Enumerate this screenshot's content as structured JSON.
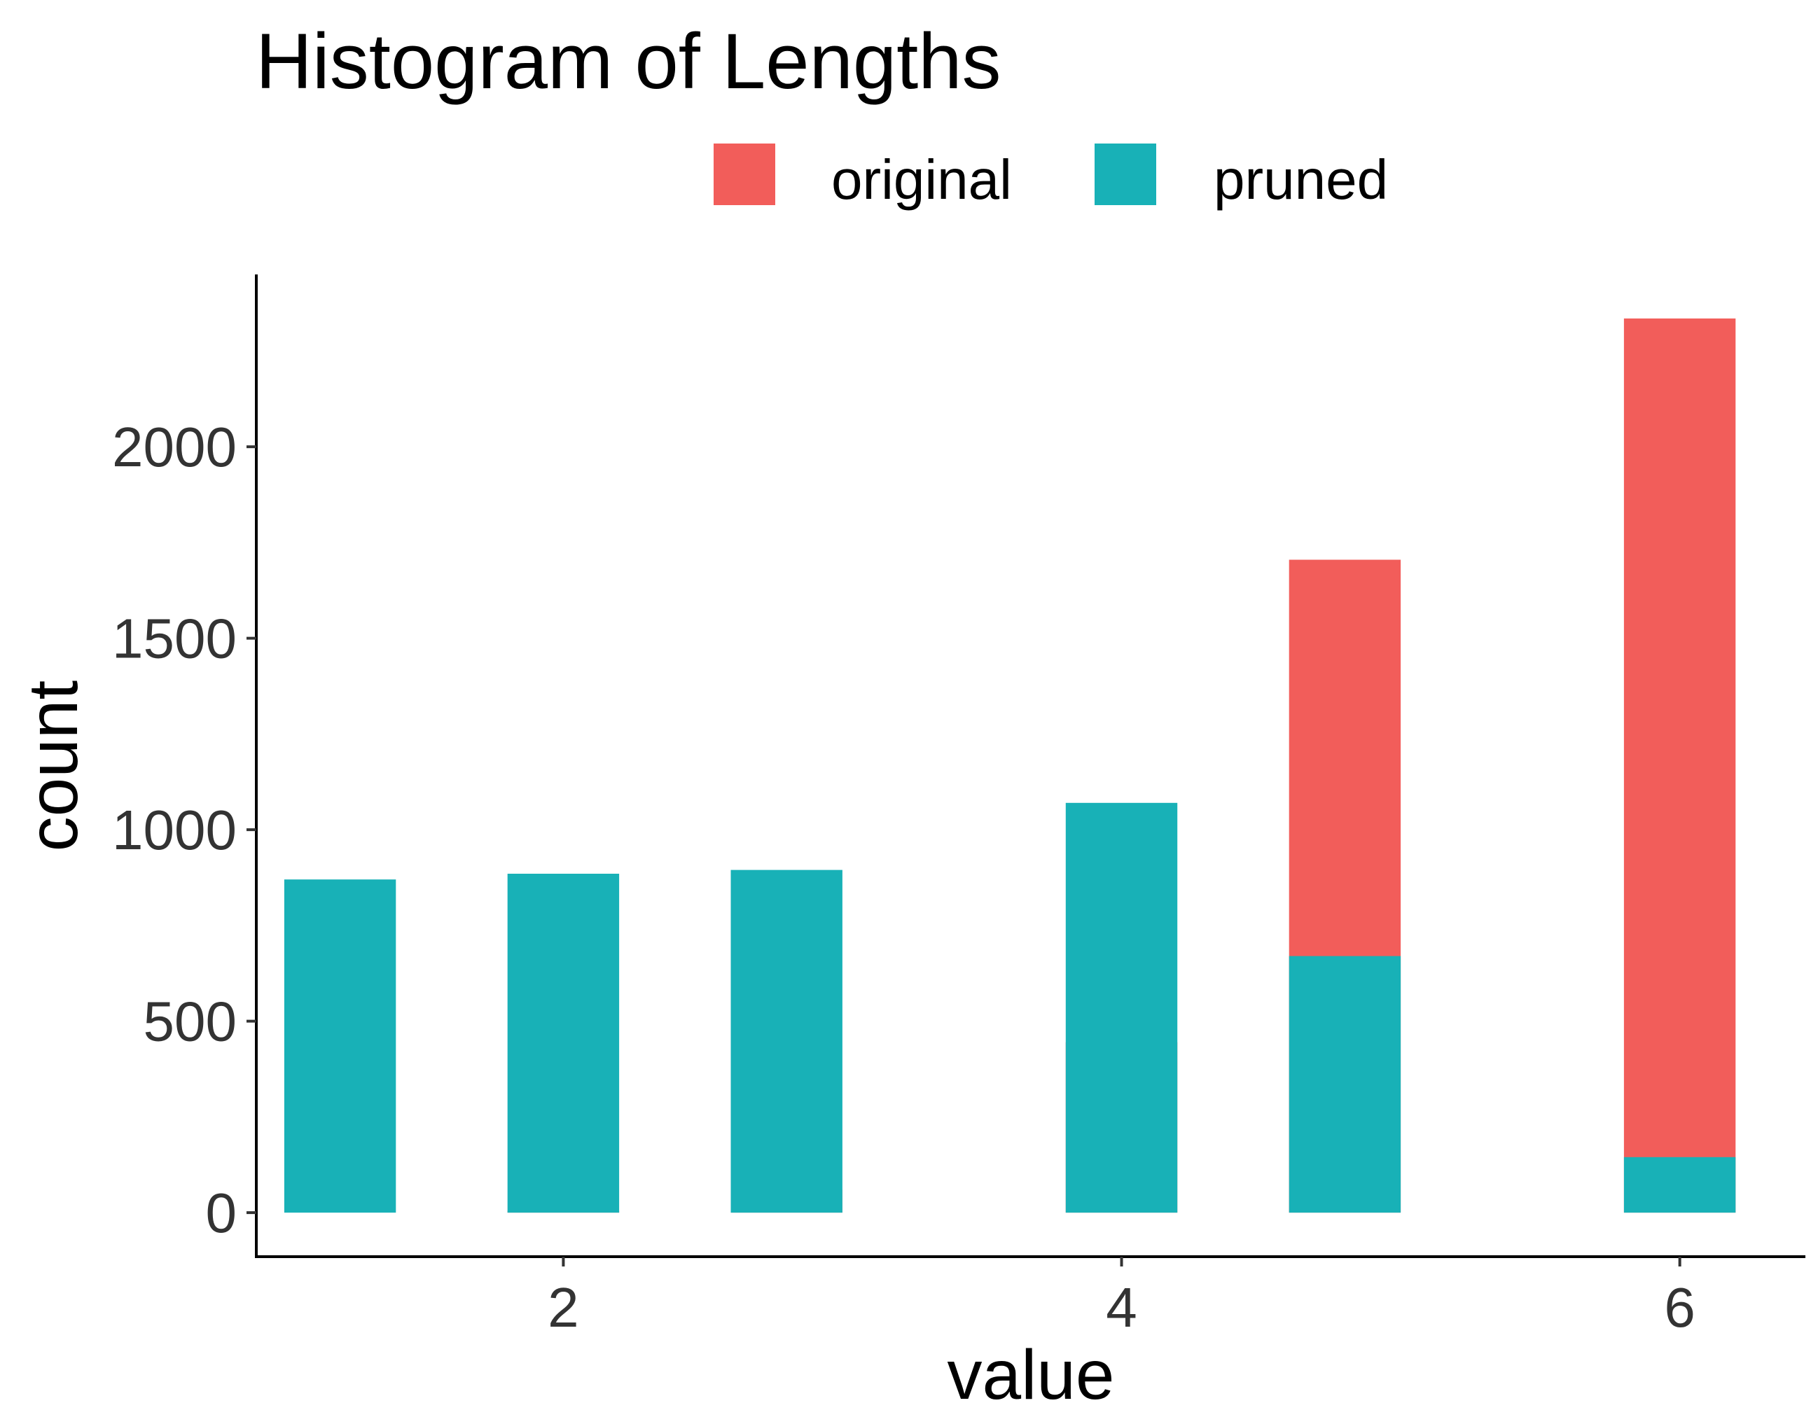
{
  "chart_data": {
    "type": "bar",
    "title": "Histogram of Lengths",
    "xlabel": "value",
    "ylabel": "count",
    "xlim": [
      0.9,
      6.45
    ],
    "ylim": [
      -115,
      2450
    ],
    "xticks": [
      2,
      4,
      6
    ],
    "yticks": [
      0,
      500,
      1000,
      1500,
      2000
    ],
    "bar_width": 0.4,
    "grid": false,
    "legend_position": "top",
    "series": [
      {
        "name": "original",
        "color": "#F25D5A",
        "points": [
          {
            "x": 2,
            "y": 5
          },
          {
            "x": 2.8,
            "y": 60
          },
          {
            "x": 4,
            "y": 445
          },
          {
            "x": 4.8,
            "y": 1705
          },
          {
            "x": 6,
            "y": 2335
          }
        ]
      },
      {
        "name": "pruned",
        "color": "#18B1B7",
        "points": [
          {
            "x": 1.2,
            "y": 870
          },
          {
            "x": 2,
            "y": 885
          },
          {
            "x": 2.8,
            "y": 895
          },
          {
            "x": 4,
            "y": 1070
          },
          {
            "x": 4.8,
            "y": 670
          },
          {
            "x": 6,
            "y": 145
          }
        ]
      }
    ]
  }
}
